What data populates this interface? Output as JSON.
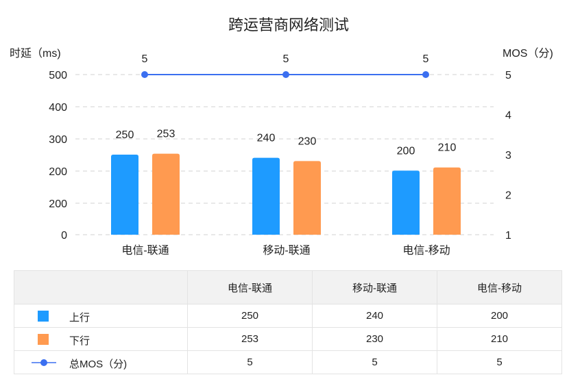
{
  "chart_data": {
    "type": "bar",
    "title": "跨运营商网络测试",
    "categories": [
      "电信-联通",
      "移动-联通",
      "电信-移动"
    ],
    "y_left": {
      "label": "时延（ms)",
      "ticks": [
        "0",
        "200",
        "200",
        "300",
        "400",
        "500"
      ]
    },
    "y_right": {
      "label": "MOS（分)",
      "ticks": [
        "1",
        "2",
        "3",
        "4",
        "5"
      ],
      "range": [
        1,
        5
      ]
    },
    "series": [
      {
        "name": "上行",
        "type": "bar",
        "axis": "left",
        "color": "#1e9bff",
        "values": [
          250,
          240,
          200
        ]
      },
      {
        "name": "下行",
        "type": "bar",
        "axis": "left",
        "color": "#ff9a50",
        "values": [
          253,
          230,
          210
        ]
      },
      {
        "name": "总MOS（分)",
        "type": "line",
        "axis": "right",
        "color": "#3b6ff0",
        "values": [
          5,
          5,
          5
        ]
      }
    ],
    "grid": true,
    "legend": "table-below"
  },
  "table": {
    "header": [
      "",
      "电信-联通",
      "移动-联通",
      "电信-移动"
    ],
    "rows": [
      {
        "name": "上行",
        "values": [
          "250",
          "240",
          "200"
        ]
      },
      {
        "name": "下行",
        "values": [
          "253",
          "230",
          "210"
        ]
      },
      {
        "name": "总MOS（分)",
        "values": [
          "5",
          "5",
          "5"
        ]
      }
    ]
  }
}
